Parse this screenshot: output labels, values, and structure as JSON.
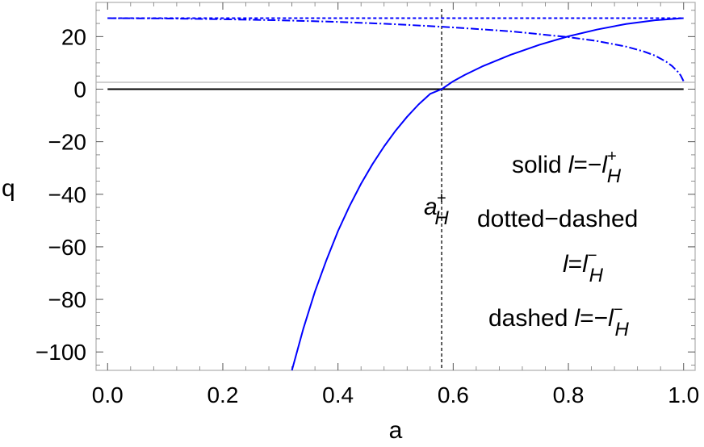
{
  "chart_data": {
    "type": "line",
    "xlabel": "a",
    "ylabel": "q",
    "xlim": [
      -0.02,
      1.02
    ],
    "ylim": [
      -107,
      33
    ],
    "xticks": [
      0.0,
      0.2,
      0.4,
      0.6,
      0.8,
      1.0
    ],
    "xtick_labels": [
      "0.0",
      "0.2",
      "0.4",
      "0.6",
      "0.8",
      "1.0"
    ],
    "yticks": [
      20,
      0,
      -20,
      -40,
      -60,
      -80,
      -100
    ],
    "ytick_labels": [
      "20",
      "0",
      "−20",
      "−40",
      "−60",
      "−80",
      "−100"
    ],
    "grid": false,
    "colors": {
      "curves": "#0000ff",
      "axis": "#000000",
      "frame": "#b3b3b3",
      "vline": "#333333"
    },
    "series": [
      {
        "style": "solid",
        "x": [
          0.32,
          0.34,
          0.36,
          0.38,
          0.4,
          0.42,
          0.44,
          0.46,
          0.48,
          0.5,
          0.52,
          0.54,
          0.56,
          0.58,
          0.6,
          0.62,
          0.65,
          0.7,
          0.75,
          0.8,
          0.85,
          0.9,
          0.95,
          1.0
        ],
        "y": [
          -107,
          -91,
          -77,
          -65,
          -54,
          -44.5,
          -36,
          -28.5,
          -21.8,
          -15.8,
          -10.5,
          -5.8,
          -1.8,
          0,
          3,
          5.4,
          8.6,
          13.1,
          16.9,
          20.1,
          22.7,
          24.8,
          26.2,
          27
        ]
      },
      {
        "style": "dotted-dashed",
        "x": [
          0.0,
          0.1,
          0.2,
          0.3,
          0.4,
          0.5,
          0.6,
          0.7,
          0.8,
          0.85,
          0.9,
          0.93,
          0.95,
          0.97,
          0.98,
          0.99,
          0.995,
          1.0
        ],
        "y": [
          27,
          26.9,
          26.6,
          26.2,
          25.6,
          24.7,
          23.5,
          22,
          19.8,
          18.3,
          16.2,
          14.4,
          12.8,
          10.4,
          8.8,
          6.6,
          5.2,
          3
        ]
      },
      {
        "style": "dashed",
        "x": [
          0.0,
          0.2,
          0.4,
          0.6,
          0.8,
          1.0
        ],
        "y": [
          27,
          27,
          27,
          27,
          27,
          27
        ]
      }
    ],
    "reference_lines": [
      {
        "orientation": "horizontal",
        "y": 0,
        "style": "solid"
      },
      {
        "orientation": "vertical",
        "x": 0.58,
        "style": "dotted"
      }
    ]
  },
  "annotations": {
    "marker": {
      "base": "a",
      "sup": "+",
      "sub": "H"
    },
    "legend": {
      "solid": {
        "text": "solid",
        "var": "l",
        "eq": "=−",
        "rhs": "l",
        "sup": "+",
        "sub": "H"
      },
      "dotted_dashed": {
        "text": "dotted−dashed",
        "var": "l",
        "eq": "=",
        "rhs": "l",
        "sup": "−",
        "sub": "H"
      },
      "dashed": {
        "text": "dashed",
        "var": "l",
        "eq": "=−",
        "rhs": "l",
        "sup": "−",
        "sub": "H"
      }
    }
  }
}
